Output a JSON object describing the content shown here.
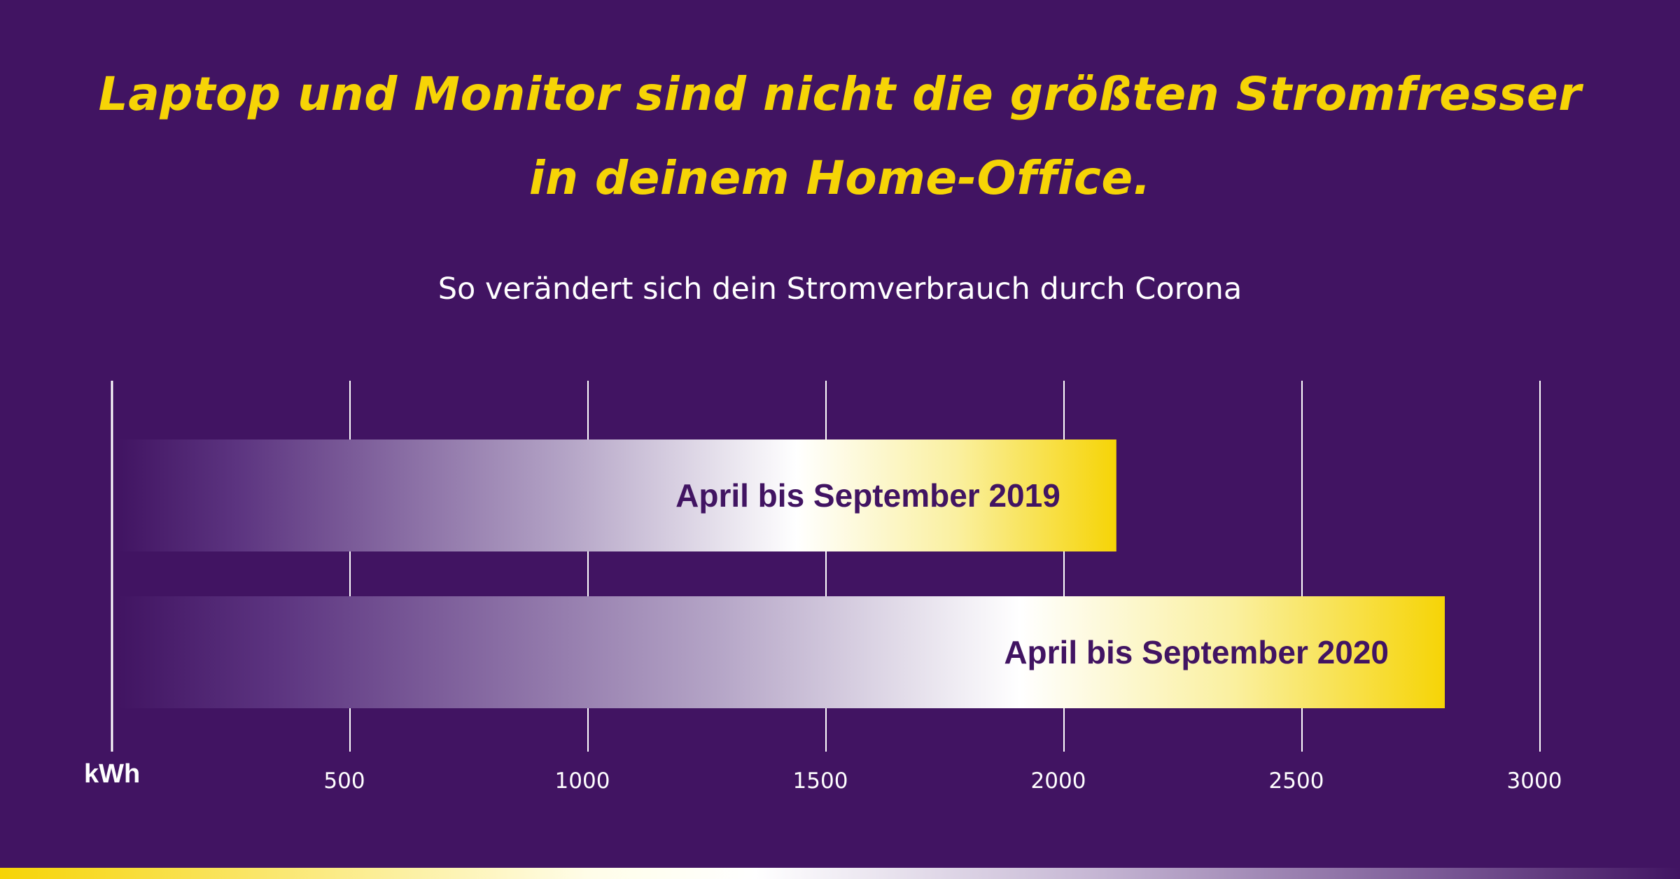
{
  "header": {
    "title_line1": "Laptop und Monitor sind nicht die größten Stromfresser",
    "title_line2": "in deinem Home-Office."
  },
  "chart_data": {
    "type": "bar",
    "orientation": "horizontal",
    "subtitle": "So verändert sich dein Stromverbrauch durch Corona",
    "unit_label": "kWh",
    "categories": [
      "April bis September 2019",
      "April bis September 2020"
    ],
    "values": [
      2110,
      2800
    ],
    "xlim": [
      0,
      3000
    ],
    "xticks": [
      "500",
      "1000",
      "1500",
      "2000",
      "2500",
      "3000"
    ],
    "grid": true,
    "legend": "none",
    "bar_gradient": "purple-to-white-to-yellow"
  },
  "colors": {
    "background": "#411462",
    "accent_yellow": "#f6d406",
    "bar_label": "#411462",
    "axis_text": "#ffffff"
  }
}
